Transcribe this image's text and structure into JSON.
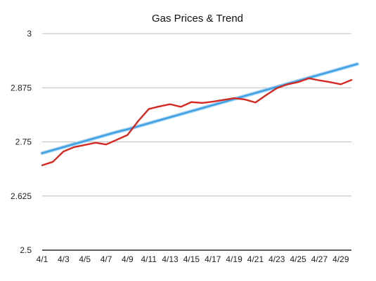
{
  "chart_data": {
    "type": "line",
    "title": "Gas Prices & Trend",
    "xlabel": "",
    "ylabel": "",
    "ylim": [
      2.5,
      3
    ],
    "yticks": [
      "2.5",
      "2.625",
      "2.75",
      "2.875",
      "3"
    ],
    "x": [
      "4/1",
      "4/2",
      "4/3",
      "4/4",
      "4/5",
      "4/6",
      "4/7",
      "4/8",
      "4/9",
      "4/10",
      "4/11",
      "4/12",
      "4/13",
      "4/14",
      "4/15",
      "4/16",
      "4/17",
      "4/18",
      "4/19",
      "4/20",
      "4/21",
      "4/22",
      "4/23",
      "4/24",
      "4/25",
      "4/26",
      "4/27",
      "4/28",
      "4/29",
      "4/30"
    ],
    "xtick_labels": [
      "4/1",
      "4/3",
      "4/5",
      "4/7",
      "4/9",
      "4/11",
      "4/13",
      "4/15",
      "4/17",
      "4/19",
      "4/21",
      "4/23",
      "4/25",
      "4/27",
      "4/29"
    ],
    "series": [
      {
        "values": [
          2.696,
          2.704,
          2.728,
          2.738,
          2.743,
          2.748,
          2.744,
          2.755,
          2.766,
          2.798,
          2.826,
          2.832,
          2.837,
          2.831,
          2.842,
          2.84,
          2.843,
          2.847,
          2.851,
          2.848,
          2.841,
          2.858,
          2.874,
          2.883,
          2.888,
          2.897,
          2.892,
          2.888,
          2.883,
          2.893
        ],
        "color": "#d42a22"
      },
      {
        "values": [
          2.724,
          2.731,
          2.738,
          2.745,
          2.752,
          2.759,
          2.766,
          2.773,
          2.779,
          2.786,
          2.793,
          2.8,
          2.807,
          2.814,
          2.821,
          2.828,
          2.835,
          2.842,
          2.849,
          2.856,
          2.863,
          2.87,
          2.877,
          2.884,
          2.891,
          2.898,
          2.905,
          2.912,
          2.919,
          2.926
        ],
        "color": "#3a9ee0"
      }
    ],
    "grid": true,
    "legend": "none"
  }
}
